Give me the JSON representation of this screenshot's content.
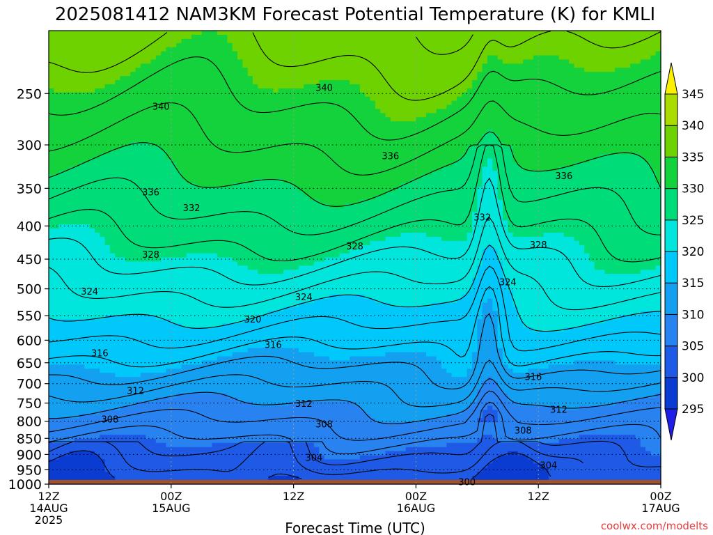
{
  "chart_data": {
    "type": "heatmap",
    "title": "2025081412 NAM3KM Forecast Potential Temperature (K) for KMLI",
    "xlabel": "Forecast Time (UTC)",
    "ylabel": "",
    "x_ticks": [
      {
        "hour": 0,
        "lines": [
          "12Z",
          "14AUG",
          "2025"
        ]
      },
      {
        "hour": 12,
        "lines": [
          "00Z",
          "15AUG"
        ]
      },
      {
        "hour": 24,
        "lines": [
          "12Z"
        ]
      },
      {
        "hour": 36,
        "lines": [
          "00Z",
          "16AUG"
        ]
      },
      {
        "hour": 48,
        "lines": [
          "12Z"
        ]
      },
      {
        "hour": 60,
        "lines": [
          "00Z",
          "17AUG"
        ]
      }
    ],
    "xlim": [
      0,
      60
    ],
    "y_pressure_ticks": [
      250,
      300,
      350,
      400,
      450,
      500,
      550,
      600,
      650,
      700,
      750,
      800,
      850,
      900,
      950,
      1000
    ],
    "ylim_hPa": [
      1000,
      200
    ],
    "surface_pressure_hPa": 985,
    "colorbar": {
      "levels": [
        295,
        300,
        305,
        310,
        315,
        320,
        325,
        330,
        335,
        340,
        345
      ],
      "colors": [
        "#1E1EE6",
        "#0A3CD2",
        "#1E5AE6",
        "#2882F0",
        "#14A0F0",
        "#00C8FA",
        "#00E6DC",
        "#00DC78",
        "#14D23C",
        "#6ED200",
        "#AADC00",
        "#FAF000"
      ]
    },
    "grid": true,
    "contour_interval_K": 2,
    "contour_labels": [
      {
        "value": 340,
        "hour": 11,
        "p": 262
      },
      {
        "value": 340,
        "hour": 27,
        "p": 245
      },
      {
        "value": 336,
        "hour": 33.5,
        "p": 312
      },
      {
        "value": 336,
        "hour": 50.5,
        "p": 335
      },
      {
        "value": 336,
        "hour": 10,
        "p": 355
      },
      {
        "value": 332,
        "hour": 14,
        "p": 375
      },
      {
        "value": 332,
        "hour": 42.5,
        "p": 388
      },
      {
        "value": 328,
        "hour": 10,
        "p": 443
      },
      {
        "value": 328,
        "hour": 30,
        "p": 430
      },
      {
        "value": 328,
        "hour": 48,
        "p": 428
      },
      {
        "value": 324,
        "hour": 4,
        "p": 505
      },
      {
        "value": 324,
        "hour": 25,
        "p": 515
      },
      {
        "value": 324,
        "hour": 45,
        "p": 488
      },
      {
        "value": 320,
        "hour": 20,
        "p": 557
      },
      {
        "value": 316,
        "hour": 5,
        "p": 628
      },
      {
        "value": 316,
        "hour": 22,
        "p": 610
      },
      {
        "value": 316,
        "hour": 47.5,
        "p": 683
      },
      {
        "value": 312,
        "hour": 8.5,
        "p": 718
      },
      {
        "value": 312,
        "hour": 25,
        "p": 752
      },
      {
        "value": 312,
        "hour": 50,
        "p": 768
      },
      {
        "value": 308,
        "hour": 6,
        "p": 795
      },
      {
        "value": 308,
        "hour": 27,
        "p": 808
      },
      {
        "value": 308,
        "hour": 46.5,
        "p": 827
      },
      {
        "value": 304,
        "hour": 26,
        "p": 910
      },
      {
        "value": 304,
        "hour": 49,
        "p": 935
      },
      {
        "value": 300,
        "hour": 41,
        "p": 993
      }
    ]
  },
  "credit": "coolwx.com/modelts"
}
